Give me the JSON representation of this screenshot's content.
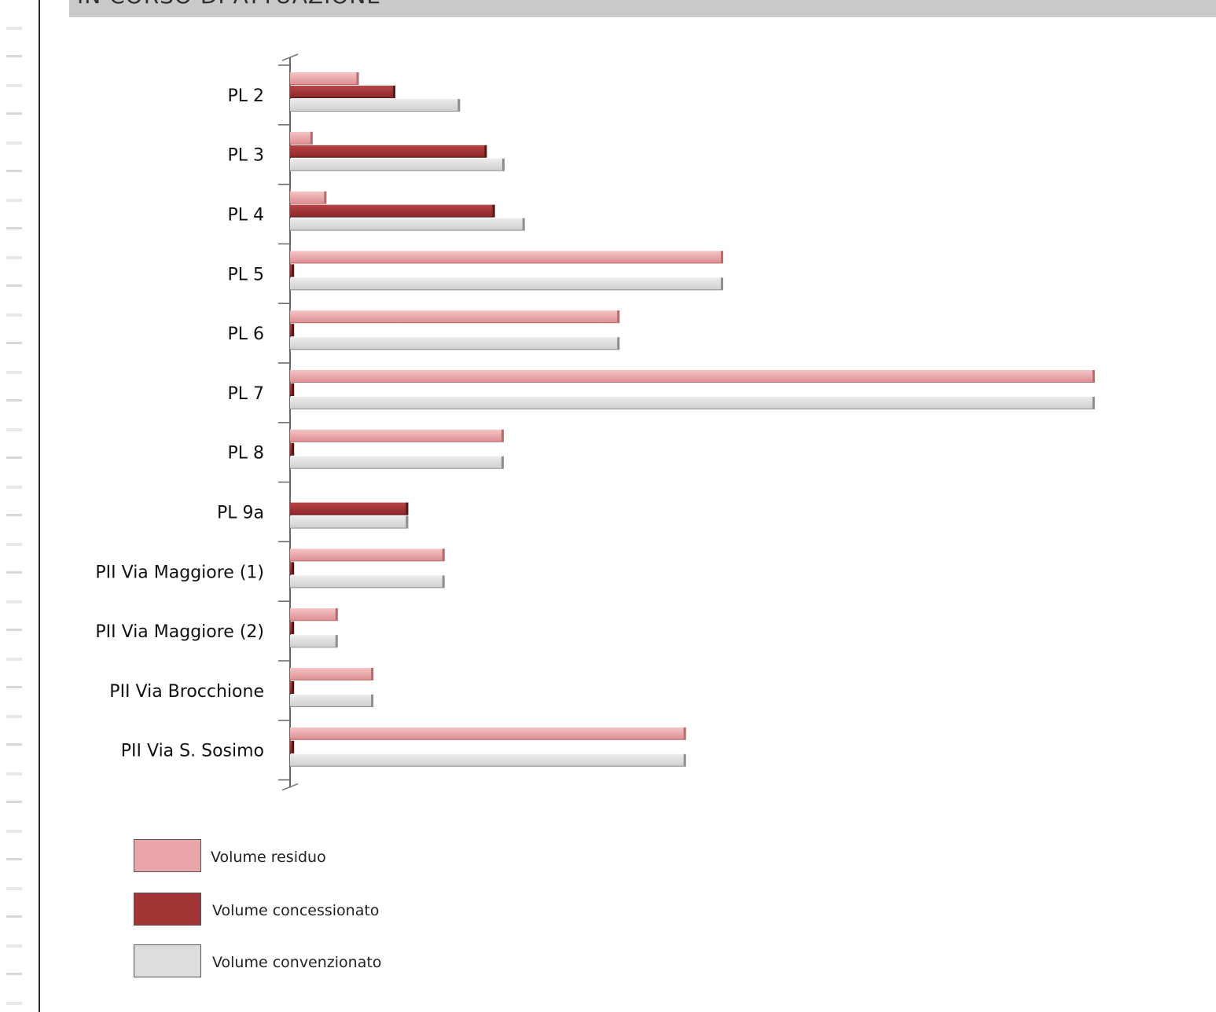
{
  "page": {
    "section_title": "IN CORSO DI ATTUAZIONE"
  },
  "chart_data": {
    "type": "bar",
    "orientation": "horizontal",
    "title": "",
    "xlabel": "",
    "ylabel": "",
    "categories": [
      "PL 2",
      "PL 3",
      "PL 4",
      "PL 5",
      "PL 6",
      "PL 7",
      "PL 8",
      "PL 9a",
      "PII Via Maggiore (1)",
      "PII Via Maggiore (2)",
      "PII Via Brocchione",
      "PII Via S. Sosimo"
    ],
    "series": [
      {
        "name": "Volume residuo",
        "color": "#e8a6a8",
        "values": [
          8.5,
          2.8,
          4.5,
          53.5,
          40.7,
          99.4,
          26.4,
          0,
          19.1,
          5.9,
          10.3,
          48.9
        ]
      },
      {
        "name": "Volume concessionato",
        "color": "#a33536",
        "values": [
          13.0,
          24.3,
          25.3,
          0.5,
          0.5,
          0.5,
          0.5,
          14.6,
          0.5,
          0.5,
          0.5,
          0.5
        ]
      },
      {
        "name": "Volume convenzionato",
        "color": "#dcdcdc",
        "values": [
          21.0,
          26.5,
          29.0,
          53.5,
          40.7,
          99.4,
          26.4,
          14.6,
          19.1,
          5.9,
          10.3,
          48.9
        ]
      }
    ],
    "xlim": [
      0,
      100
    ],
    "gridlines": false,
    "axis_ticks": false,
    "legend_position": "bottom-left"
  }
}
